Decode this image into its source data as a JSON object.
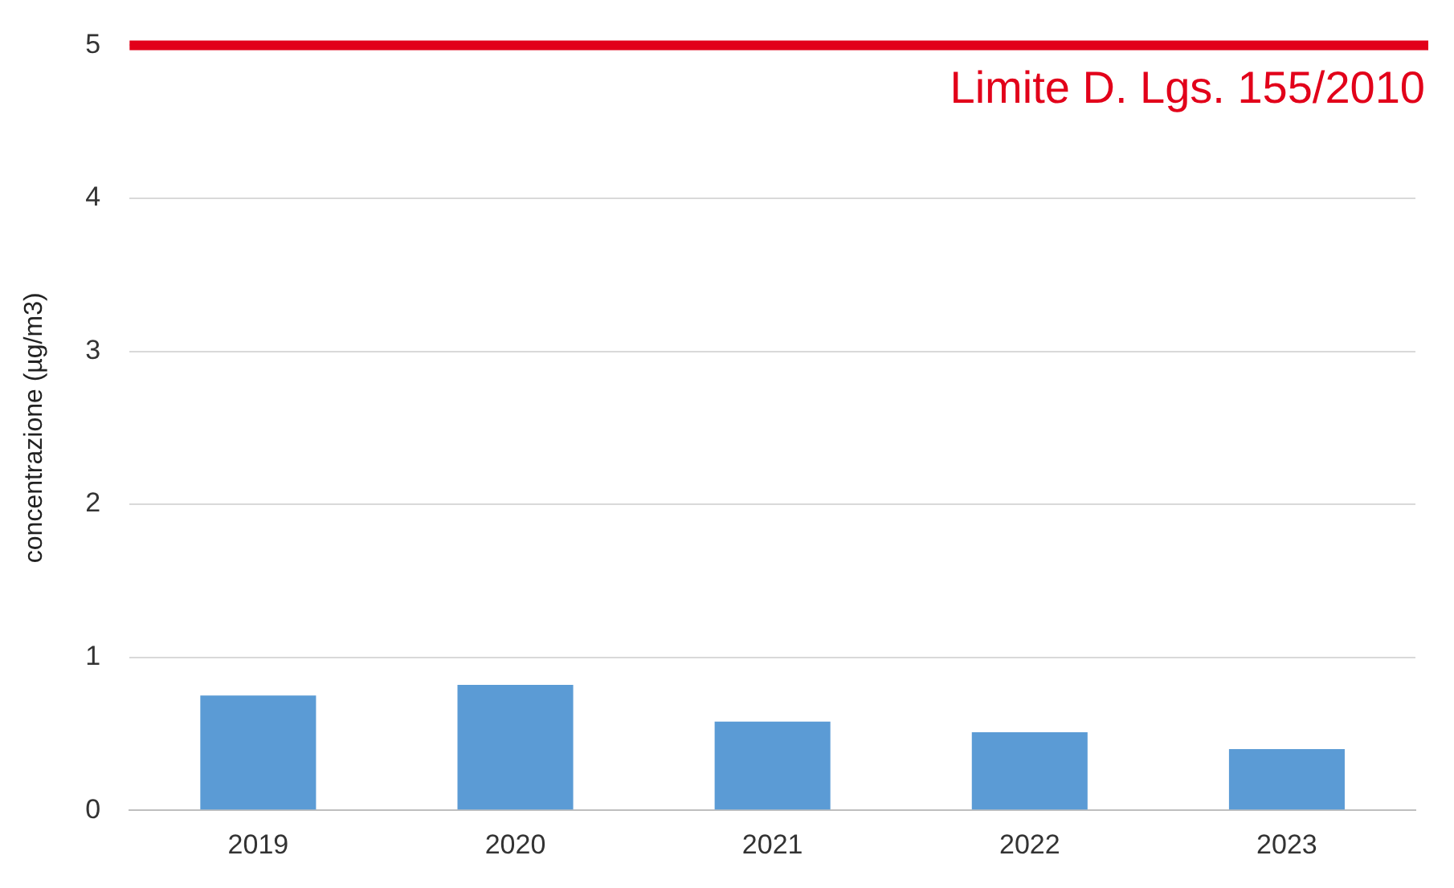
{
  "chart_data": {
    "type": "bar",
    "ylabel": "concentrazione (µg/m3)",
    "categories": [
      "2019",
      "2020",
      "2021",
      "2022",
      "2023"
    ],
    "values": [
      0.75,
      0.82,
      0.58,
      0.51,
      0.4
    ],
    "color": "#5b9bd5",
    "ylim": [
      0,
      5
    ],
    "yticks": [
      0,
      1,
      2,
      3,
      4,
      5
    ],
    "grid": "y",
    "ref_lines": [
      {
        "axis": "y",
        "value": 5,
        "label": "Limite D. Lgs. 155/2010",
        "color": "#e2001a"
      }
    ]
  }
}
